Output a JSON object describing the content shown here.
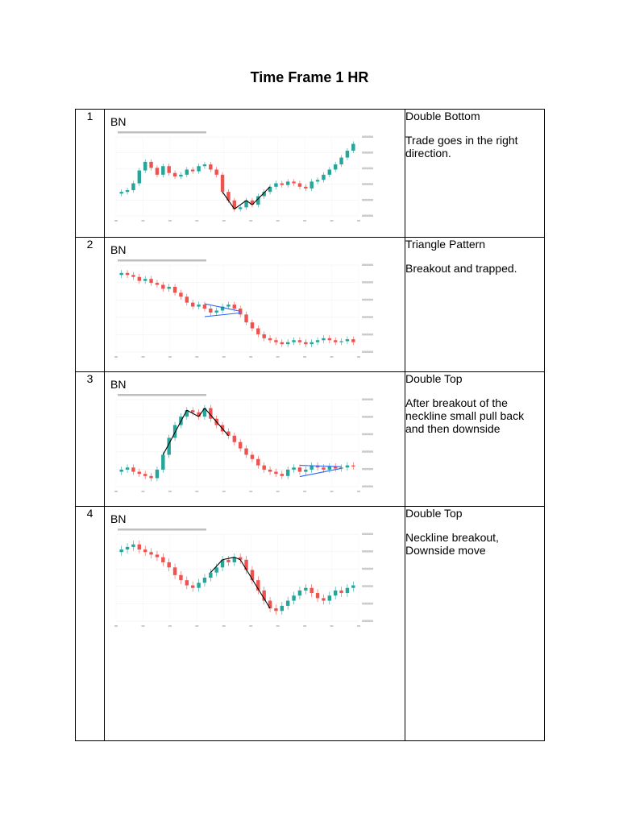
{
  "title": "Time Frame 1 HR",
  "rows": [
    {
      "num": "1",
      "instrument": "BN",
      "pattern": "Double Bottom",
      "note": "Trade goes in the right direction."
    },
    {
      "num": "2",
      "instrument": "BN",
      "pattern": "Triangle Pattern",
      "note": "Breakout and trapped."
    },
    {
      "num": "3",
      "instrument": "BN",
      "pattern": "Double Top",
      "note": "After breakout of the neckline small pull back and then downside"
    },
    {
      "num": "4",
      "instrument": "BN",
      "pattern": "Double Top",
      "note": "Neckline breakout, Downside move"
    }
  ],
  "colors": {
    "up": "#26a69a",
    "down": "#ef5350",
    "trend": "#000000",
    "triangle": "#2962ff"
  },
  "charts": [
    {
      "closes": [
        60,
        62,
        70,
        85,
        95,
        88,
        80,
        90,
        82,
        78,
        80,
        86,
        84,
        90,
        92,
        86,
        80,
        60,
        50,
        40,
        42,
        50,
        45,
        55,
        60,
        66,
        70,
        68,
        72,
        70,
        66,
        64,
        72,
        74,
        80,
        86,
        92,
        100,
        108,
        116
      ],
      "overlay": "double-bottom"
    },
    {
      "closes": [
        100,
        98,
        96,
        92,
        94,
        90,
        88,
        84,
        86,
        80,
        76,
        70,
        66,
        68,
        64,
        60,
        62,
        66,
        68,
        64,
        58,
        50,
        44,
        38,
        34,
        32,
        30,
        28,
        30,
        32,
        30,
        28,
        30,
        32,
        34,
        32,
        30,
        31,
        33,
        30
      ],
      "overlay": "triangle"
    },
    {
      "closes": [
        30,
        32,
        28,
        26,
        24,
        22,
        30,
        44,
        60,
        72,
        80,
        86,
        84,
        80,
        88,
        78,
        72,
        66,
        62,
        56,
        50,
        44,
        40,
        34,
        30,
        28,
        26,
        24,
        30,
        32,
        28,
        30,
        34,
        32,
        30,
        33,
        31,
        32,
        34,
        33
      ],
      "overlay": "double-top-triangle"
    },
    {
      "closes": [
        80,
        82,
        84,
        80,
        78,
        76,
        74,
        70,
        66,
        60,
        56,
        52,
        50,
        54,
        58,
        62,
        66,
        72,
        70,
        74,
        72,
        64,
        56,
        48,
        40,
        34,
        32,
        36,
        40,
        44,
        48,
        50,
        46,
        42,
        40,
        44,
        48,
        46,
        50,
        52
      ],
      "overlay": "double-top"
    }
  ]
}
